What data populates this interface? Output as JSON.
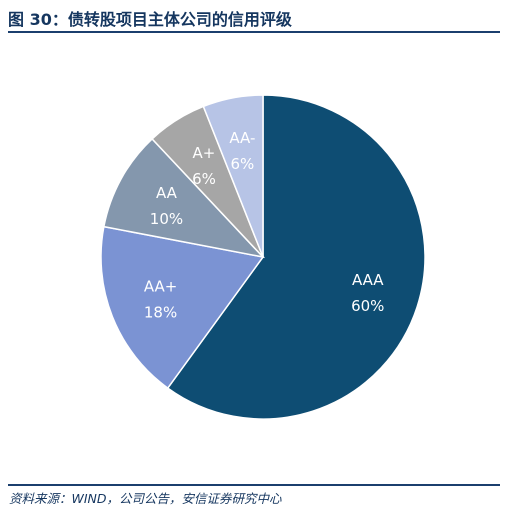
{
  "figure": {
    "title": "图 30：债转股项目主体公司的信用评级",
    "source": "资料来源：WIND，公司公告，安信证券研究中心"
  },
  "chart_data": {
    "type": "pie",
    "title": "",
    "start": "12 o'clock",
    "direction": "clockwise",
    "slices": [
      {
        "label": "AAA",
        "value": 60,
        "value_label": "60%",
        "color": "#0e4d73"
      },
      {
        "label": "AA+",
        "value": 18,
        "value_label": "18%",
        "color": "#7b93d3"
      },
      {
        "label": "AA",
        "value": 10,
        "value_label": "10%",
        "color": "#8497ad"
      },
      {
        "label": "A+",
        "value": 6,
        "value_label": "6%",
        "color": "#a6a6a6"
      },
      {
        "label": "AA-",
        "value": 6,
        "value_label": "6%",
        "color": "#b7c4e6"
      }
    ]
  }
}
